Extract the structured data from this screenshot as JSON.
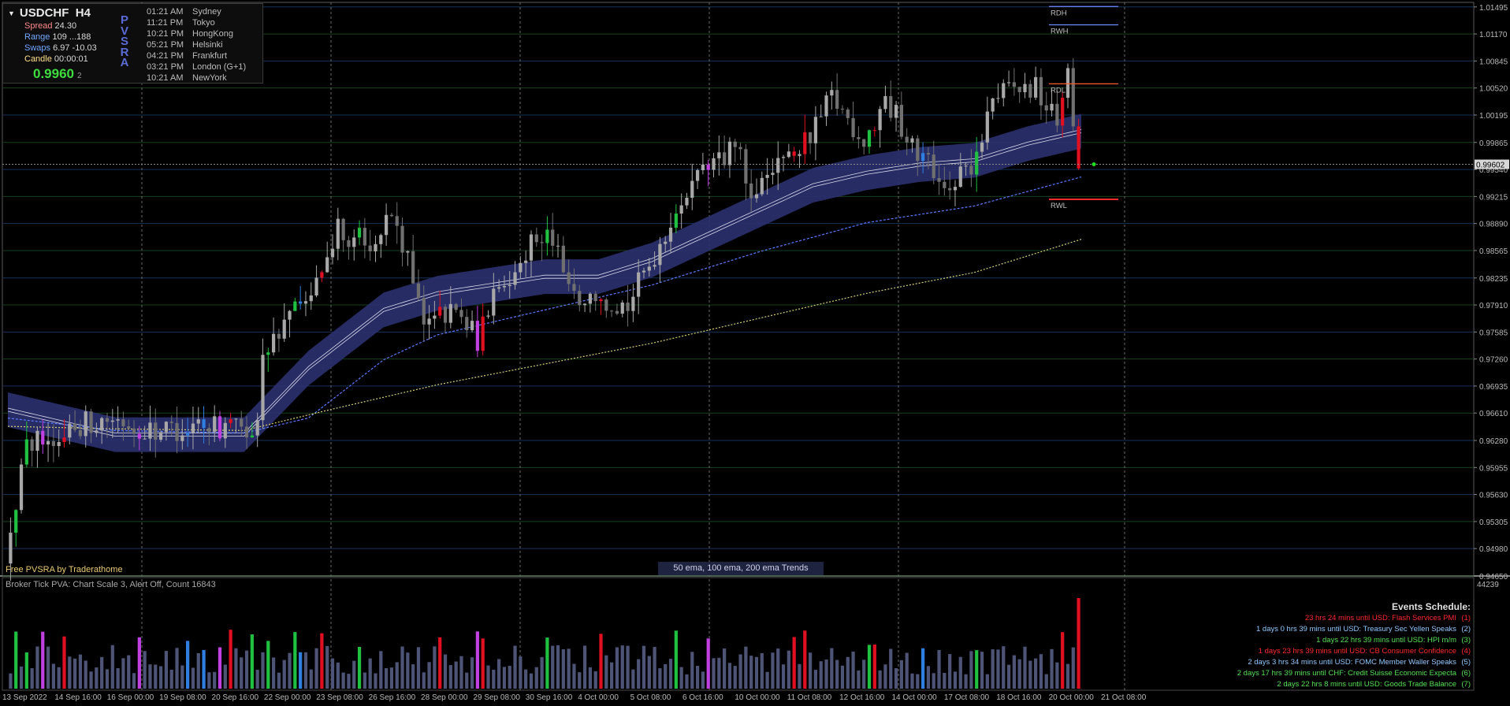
{
  "info": {
    "symbol": "USDCHF",
    "timeframe": "H4",
    "spread_label": "Spread",
    "spread_value": "24.30",
    "range_label": "Range",
    "range_value": "109 ...188",
    "swaps_label": "Swaps",
    "swaps_value": "6.97 -10.03",
    "candle_label": "Candle",
    "candle_value": "00:00:01",
    "price_main": "0.9960",
    "price_small": "2",
    "pvsra_letters": [
      "P",
      "V",
      "S",
      "R",
      "A"
    ]
  },
  "sessions": [
    {
      "time": "01:21 AM",
      "city": "Sydney"
    },
    {
      "time": "11:21 PM",
      "city": "Tokyo"
    },
    {
      "time": "10:21 PM",
      "city": "HongKong"
    },
    {
      "time": "05:21 PM",
      "city": "Helsinki"
    },
    {
      "time": "04:21 PM",
      "city": "Frankfurt"
    },
    {
      "time": "03:21 PM",
      "city": "London (G+1)"
    },
    {
      "time": "10:21 AM",
      "city": "NewYork"
    }
  ],
  "free_label": "Free PVSRA by Traderathome",
  "ema_label": "50 ema, 100 ema, 200 ema Trends",
  "volume_header": "Broker Tick PVA:   Chart Scale 3,  Alert Off,  Count   16843",
  "volume_max_label": "44239",
  "levels": {
    "rdh": "RDH",
    "rwh": "RWH",
    "rdl": "RDL",
    "rwl": "RWL"
  },
  "price_axis": [
    "1.01495",
    "1.01170",
    "1.00845",
    "1.00520",
    "1.00195",
    "0.99865",
    "0.99540",
    "0.99215",
    "0.98890",
    "0.98565",
    "0.98235",
    "0.97910",
    "0.97585",
    "0.97260",
    "0.96935",
    "0.96610",
    "0.96280",
    "0.95955",
    "0.95630",
    "0.95305",
    "0.94980",
    "0.94650"
  ],
  "current_price_label": "0.99602",
  "time_axis": [
    "13 Sep 2022",
    "14 Sep 16:00",
    "16 Sep 00:00",
    "19 Sep 08:00",
    "20 Sep 16:00",
    "22 Sep 00:00",
    "23 Sep 08:00",
    "26 Sep 16:00",
    "28 Sep 00:00",
    "29 Sep 08:00",
    "30 Sep 16:00",
    "4 Oct 00:00",
    "5 Oct 08:00",
    "6 Oct 16:00",
    "10 Oct 00:00",
    "11 Oct 08:00",
    "12 Oct 16:00",
    "14 Oct 00:00",
    "17 Oct 08:00",
    "18 Oct 16:00",
    "20 Oct 00:00",
    "21 Oct 08:00"
  ],
  "events": {
    "title": "Events Schedule:",
    "items": [
      {
        "text": "23 hrs 24 mins until USD: Flash Services PMI",
        "num": "(1)",
        "color": "#ff2a2a"
      },
      {
        "text": "1 days 0 hrs 39 mins until USD: Treasury Sec Yellen Speaks",
        "num": "(2)",
        "color": "#8ec8ff"
      },
      {
        "text": "1 days 22 hrs 39 mins until USD: HPI m/m",
        "num": "(3)",
        "color": "#55e055"
      },
      {
        "text": "1 days 23 hrs 39 mins until USD: CB Consumer Confidence",
        "num": "(4)",
        "color": "#ff2a2a"
      },
      {
        "text": "2 days 3 hrs 34 mins until USD: FOMC Member Waller Speaks",
        "num": "(5)",
        "color": "#8ec8ff"
      },
      {
        "text": "2 days 17 hrs 39 mins until CHF: Credit Suisse Economic Expecta",
        "num": "(6)",
        "color": "#55e055"
      },
      {
        "text": "2 days 22 hrs 8 mins until USD: Goods Trade Balance",
        "num": "(7)",
        "color": "#55e055"
      }
    ]
  },
  "colors": {
    "background": "#000000",
    "bull_climax": "#20c040",
    "bear_climax": "#e01020",
    "bull_rising": "#2f7fe0",
    "bear_rising": "#c040e0",
    "neutral_up": "#a8a8a8",
    "neutral_down": "#707070",
    "ema_band": "#2b3170",
    "ema_100": "#5a7aff",
    "ema_200": "#d8d070",
    "volume_neutral": "#4e5476"
  },
  "chart_data": {
    "type": "candlestick",
    "symbol": "USDCHF",
    "timeframe": "H4",
    "ylim": [
      0.9465,
      1.0155
    ],
    "ema_legend": "50 ema, 100 ema, 200 ema Trends",
    "anchors": {
      "close": [
        [
          0,
          0.95
        ],
        [
          4,
          0.962
        ],
        [
          12,
          0.9645
        ],
        [
          20,
          0.9655
        ],
        [
          28,
          0.964
        ],
        [
          36,
          0.9645
        ],
        [
          44,
          0.964
        ],
        [
          47,
          0.964
        ],
        [
          48,
          0.973
        ],
        [
          52,
          0.977
        ],
        [
          56,
          0.98
        ],
        [
          62,
          0.988
        ],
        [
          68,
          0.987
        ],
        [
          72,
          0.99
        ],
        [
          78,
          0.978
        ],
        [
          84,
          0.978
        ],
        [
          88,
          0.975
        ],
        [
          92,
          0.981
        ],
        [
          98,
          0.987
        ],
        [
          102,
          0.987
        ],
        [
          106,
          0.98
        ],
        [
          112,
          0.98
        ],
        [
          116,
          0.979
        ],
        [
          120,
          0.984
        ],
        [
          126,
          0.992
        ],
        [
          132,
          0.996
        ],
        [
          136,
          0.998
        ],
        [
          140,
          0.992
        ],
        [
          146,
          0.997
        ],
        [
          150,
          0.999
        ],
        [
          154,
          1.004
        ],
        [
          160,
          0.999
        ],
        [
          164,
          1.004
        ],
        [
          170,
          0.997
        ],
        [
          176,
          0.994
        ],
        [
          180,
          0.995
        ],
        [
          184,
          1.004
        ],
        [
          188,
          1.005
        ],
        [
          192,
          1.005
        ],
        [
          196,
          1.001
        ],
        [
          198,
          1.009
        ],
        [
          199,
          0.999
        ],
        [
          200,
          0.996
        ]
      ],
      "ema50": [
        [
          0,
          0.9665
        ],
        [
          20,
          0.9635
        ],
        [
          44,
          0.9635
        ],
        [
          56,
          0.9715
        ],
        [
          70,
          0.9785
        ],
        [
          80,
          0.9805
        ],
        [
          90,
          0.9815
        ],
        [
          100,
          0.9825
        ],
        [
          110,
          0.9825
        ],
        [
          120,
          0.9845
        ],
        [
          130,
          0.9875
        ],
        [
          140,
          0.9905
        ],
        [
          150,
          0.9935
        ],
        [
          160,
          0.995
        ],
        [
          170,
          0.996
        ],
        [
          180,
          0.9965
        ],
        [
          190,
          0.9985
        ],
        [
          200,
          1.0
        ]
      ],
      "ema100": [
        [
          0,
          0.9655
        ],
        [
          20,
          0.964
        ],
        [
          44,
          0.9637
        ],
        [
          56,
          0.9655
        ],
        [
          70,
          0.9725
        ],
        [
          80,
          0.9755
        ],
        [
          100,
          0.9785
        ],
        [
          120,
          0.9815
        ],
        [
          140,
          0.9855
        ],
        [
          160,
          0.989
        ],
        [
          180,
          0.991
        ],
        [
          200,
          0.9945
        ]
      ],
      "ema200": [
        [
          0,
          0.9645
        ],
        [
          20,
          0.9642
        ],
        [
          44,
          0.964
        ],
        [
          60,
          0.9665
        ],
        [
          80,
          0.9695
        ],
        [
          100,
          0.972
        ],
        [
          120,
          0.9745
        ],
        [
          140,
          0.9775
        ],
        [
          160,
          0.9805
        ],
        [
          180,
          0.983
        ],
        [
          200,
          0.987
        ]
      ]
    },
    "levels": {
      "RDH": 1.015,
      "RWH": 1.0128,
      "RDL": 1.0057,
      "RWL": 0.9918
    },
    "current_price": 0.99602
  }
}
